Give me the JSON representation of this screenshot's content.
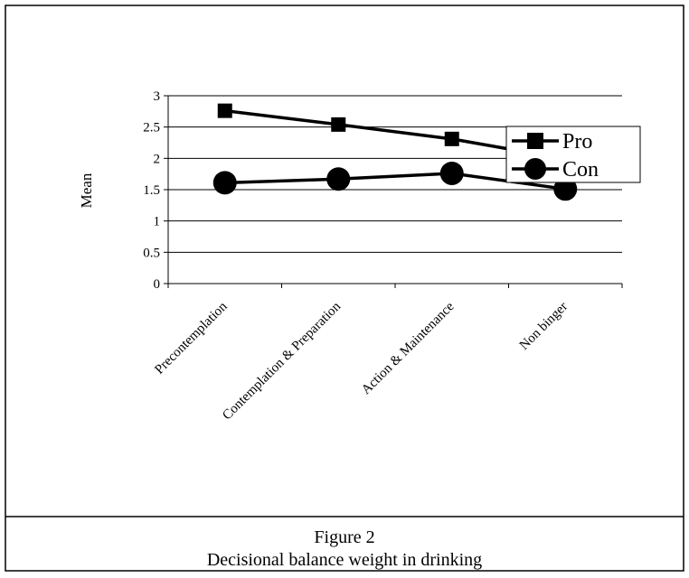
{
  "figure": {
    "label": "Figure 2",
    "caption": "Decisional balance weight in drinking"
  },
  "chart_data": {
    "type": "line",
    "title": "",
    "xlabel": "",
    "ylabel": "Mean",
    "ylim": [
      0,
      3
    ],
    "yticks": [
      "0",
      "0.5",
      "1",
      "1.5",
      "2",
      "2.5",
      "3"
    ],
    "grid": true,
    "legend_position": "top-right",
    "categories": [
      "Precontemplation",
      "Contemplation & Preparation",
      "Action & Maintenance",
      "Non binger"
    ],
    "series": [
      {
        "name": "Pro",
        "marker": "square",
        "color": "#000000",
        "values": [
          2.76,
          2.54,
          2.31,
          1.99
        ]
      },
      {
        "name": "Con",
        "marker": "circle",
        "color": "#000000",
        "values": [
          1.61,
          1.67,
          1.76,
          1.51
        ]
      }
    ]
  }
}
